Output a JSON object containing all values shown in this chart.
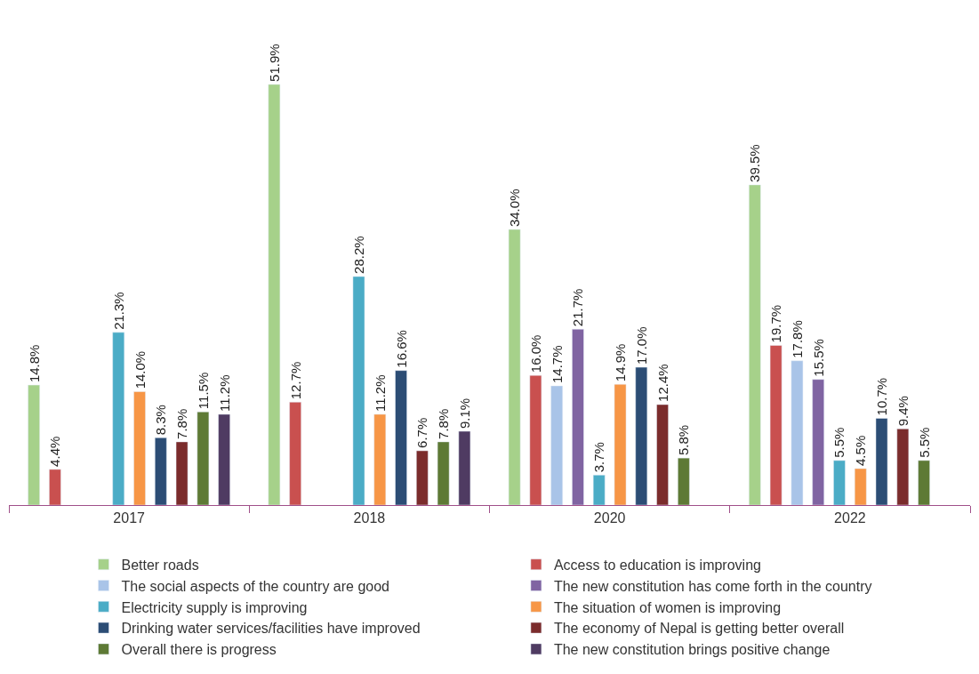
{
  "chart_data": {
    "type": "bar",
    "categories": [
      "2017",
      "2018",
      "2020",
      "2022"
    ],
    "legend": "bottom",
    "series": [
      {
        "name": "Better roads",
        "color": "#a6d18a",
        "values": [
          14.8,
          51.9,
          34.0,
          39.5
        ],
        "value_labels": [
          "14.8%",
          "51.9%",
          "34.0%",
          "39.5%"
        ]
      },
      {
        "name": "Access to education is improving",
        "color": "#c9504f",
        "values": [
          4.4,
          12.7,
          16.0,
          19.7
        ],
        "value_labels": [
          "4.4%",
          "12.7%",
          "16.0%",
          "19.7%"
        ]
      },
      {
        "name": "The social aspects of the country are good",
        "color": "#a9c4e8",
        "values": [
          null,
          null,
          14.7,
          17.8
        ],
        "value_labels": [
          null,
          null,
          "14.7%",
          "17.8%"
        ]
      },
      {
        "name": "The new constitution has come forth in the country",
        "color": "#8064a2",
        "values": [
          null,
          null,
          21.7,
          15.5
        ],
        "value_labels": [
          null,
          null,
          "21.7%",
          "15.5%"
        ]
      },
      {
        "name": "Electricity supply is improving",
        "color": "#4bacc6",
        "values": [
          21.3,
          28.2,
          3.7,
          5.5
        ],
        "value_labels": [
          "21.3%",
          "28.2%",
          "3.7%",
          "5.5%"
        ]
      },
      {
        "name": "The situation of women is improving",
        "color": "#f79646",
        "values": [
          14.0,
          11.2,
          14.9,
          4.5
        ],
        "value_labels": [
          "14.0%",
          "11.2%",
          "14.9%",
          "4.5%"
        ]
      },
      {
        "name": "Drinking water services/facilities have improved",
        "color": "#2c4d75",
        "values": [
          8.3,
          16.6,
          17.0,
          10.7
        ],
        "value_labels": [
          "8.3%",
          "16.6%",
          "17.0%",
          "10.7%"
        ]
      },
      {
        "name": "The economy of Nepal is getting better overall",
        "color": "#7b2c2c",
        "values": [
          7.8,
          6.7,
          12.4,
          9.4
        ],
        "value_labels": [
          "7.8%",
          "6.7%",
          "12.4%",
          "9.4%"
        ]
      },
      {
        "name": "Overall there is progress",
        "color": "#5e7a35",
        "values": [
          11.5,
          7.8,
          5.8,
          5.5
        ],
        "value_labels": [
          "11.5%",
          "7.8%",
          "5.8%",
          "5.5%"
        ]
      },
      {
        "name": "The new constitution brings positive change",
        "color": "#4f3b62",
        "values": [
          11.2,
          9.1,
          null,
          null
        ],
        "value_labels": [
          "11.2%",
          "9.1%",
          null,
          null
        ]
      }
    ]
  }
}
